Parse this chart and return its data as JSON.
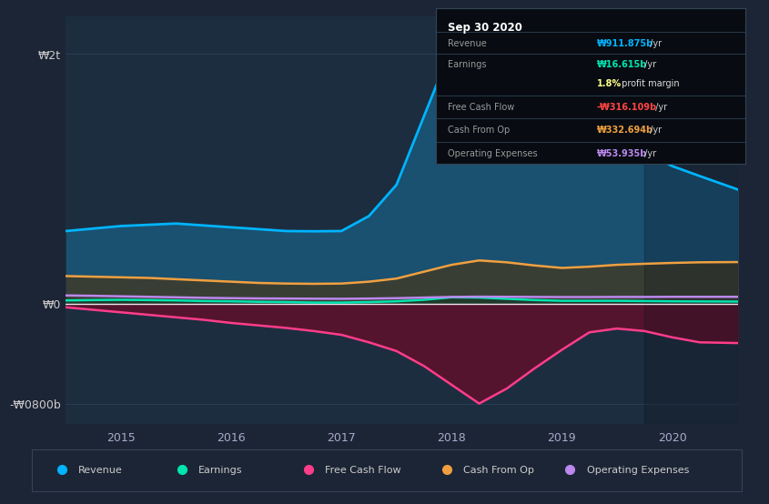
{
  "bg_color": "#1c2535",
  "plot_bg_color": "#1c2d3f",
  "grid_color": "#2a3d52",
  "x_years": [
    2014.5,
    2014.75,
    2015.0,
    2015.25,
    2015.5,
    2015.75,
    2016.0,
    2016.25,
    2016.5,
    2016.75,
    2017.0,
    2017.25,
    2017.5,
    2017.75,
    2018.0,
    2018.25,
    2018.5,
    2018.75,
    2019.0,
    2019.25,
    2019.5,
    2019.75,
    2020.0,
    2020.25,
    2020.6
  ],
  "revenue": [
    580,
    600,
    620,
    630,
    640,
    625,
    610,
    595,
    580,
    578,
    580,
    700,
    950,
    1500,
    2050,
    2100,
    1950,
    1780,
    1620,
    1480,
    1350,
    1220,
    1100,
    1020,
    911
  ],
  "earnings": [
    25,
    28,
    30,
    28,
    25,
    20,
    18,
    14,
    12,
    8,
    8,
    12,
    18,
    30,
    50,
    48,
    38,
    28,
    22,
    22,
    22,
    20,
    18,
    17,
    16
  ],
  "free_cash_flow": [
    -30,
    -50,
    -70,
    -90,
    -110,
    -130,
    -155,
    -175,
    -195,
    -220,
    -250,
    -310,
    -380,
    -500,
    -650,
    -800,
    -680,
    -520,
    -370,
    -230,
    -200,
    -220,
    -270,
    -310,
    -316
  ],
  "cash_from_op": [
    220,
    215,
    210,
    205,
    195,
    185,
    175,
    165,
    160,
    158,
    160,
    175,
    200,
    255,
    310,
    345,
    330,
    305,
    285,
    295,
    310,
    318,
    325,
    330,
    332
  ],
  "operating_expenses": [
    65,
    62,
    58,
    54,
    50,
    46,
    43,
    41,
    40,
    39,
    38,
    40,
    43,
    48,
    53,
    55,
    54,
    53,
    52,
    52,
    53,
    53,
    54,
    54,
    54
  ],
  "ylim_top": 2300,
  "ylim_bottom": -960,
  "yticks": [
    -800,
    0,
    2000
  ],
  "ytick_labels": [
    "-₩0800b",
    "₩0",
    "₩2t"
  ],
  "xticks": [
    2015,
    2016,
    2017,
    2018,
    2019,
    2020
  ],
  "revenue_color": "#00b4ff",
  "earnings_color": "#00e5b0",
  "fcf_color": "#ff3d8a",
  "cashop_color": "#f0a040",
  "opex_color": "#bb88ee",
  "revenue_fill": "#1a5070",
  "fcf_fill_color": "#60102a",
  "cashop_fill_color": "#443820",
  "earnings_fill_color": "#103828",
  "legend": [
    {
      "label": "Revenue",
      "color": "#00b4ff"
    },
    {
      "label": "Earnings",
      "color": "#00e5b0"
    },
    {
      "label": "Free Cash Flow",
      "color": "#ff3d8a"
    },
    {
      "label": "Cash From Op",
      "color": "#f0a040"
    },
    {
      "label": "Operating Expenses",
      "color": "#bb88ee"
    }
  ],
  "tooltip_title": "Sep 30 2020",
  "tooltip_rows": [
    {
      "label": "Revenue",
      "value": "₩911.875b",
      "suffix": " /yr",
      "color": "#00b4ff"
    },
    {
      "label": "Earnings",
      "value": "₩16.615b",
      "suffix": " /yr",
      "color": "#00e5b0"
    },
    {
      "label": "",
      "value": "1.8%",
      "suffix": " profit margin",
      "color": "#ffff88"
    },
    {
      "label": "Free Cash Flow",
      "value": "-₩316.109b",
      "suffix": " /yr",
      "color": "#ff4444"
    },
    {
      "label": "Cash From Op",
      "value": "₩332.694b",
      "suffix": " /yr",
      "color": "#f0a040"
    },
    {
      "label": "Operating Expenses",
      "value": "₩53.935b",
      "suffix": " /yr",
      "color": "#bb88ee"
    }
  ]
}
